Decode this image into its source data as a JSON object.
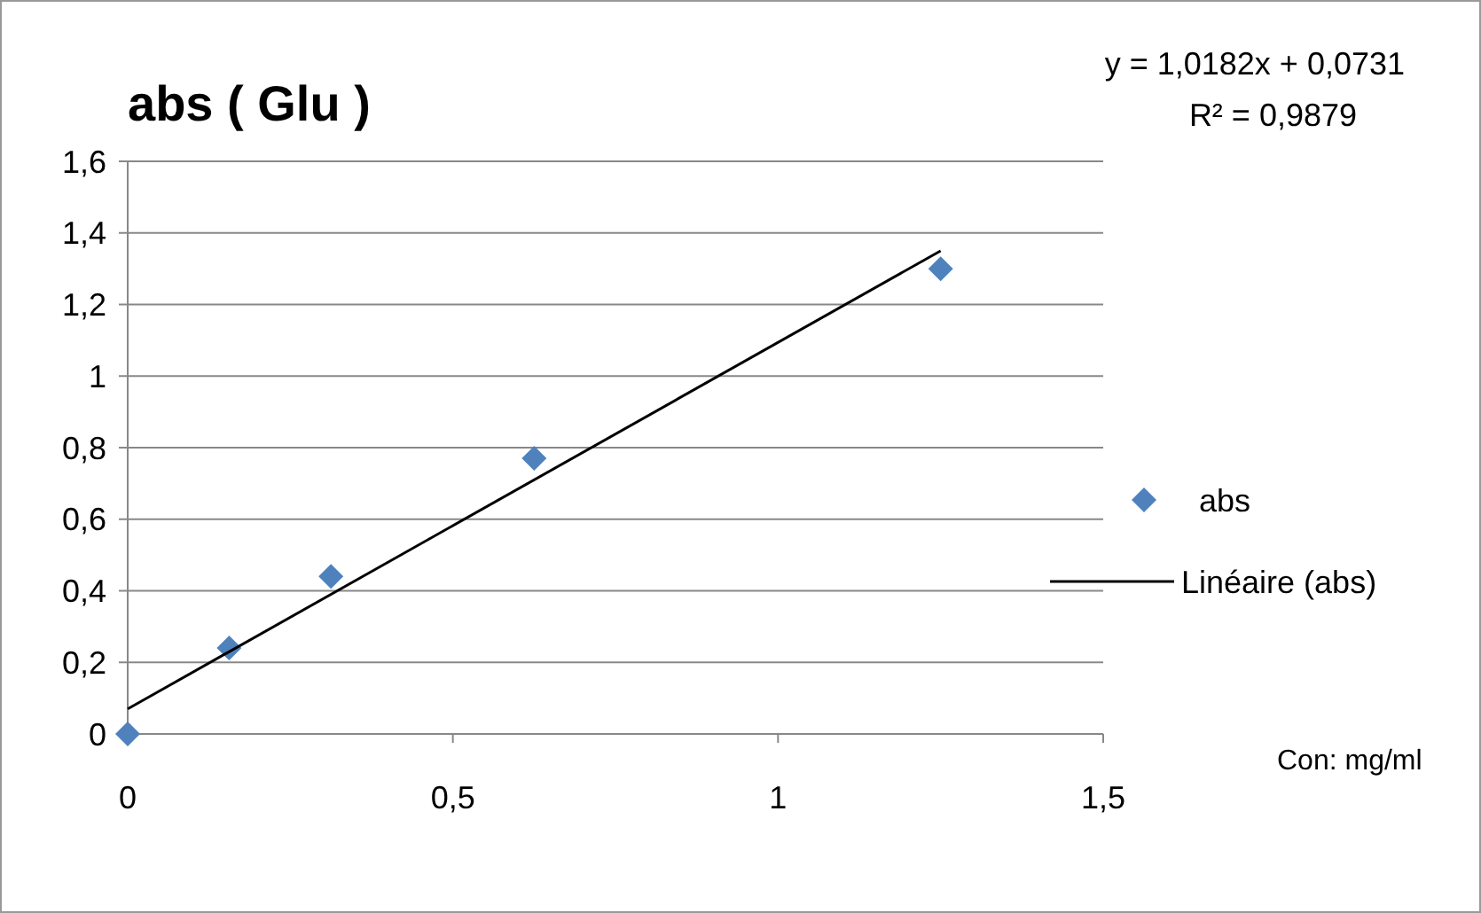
{
  "chart_data": {
    "type": "scatter",
    "title": "abs ( Glu )",
    "annotations": [
      "y = 1,0182x + 0,0731",
      "R² = 0,9879",
      "Con: mg/ml"
    ],
    "x": [
      0,
      0.156,
      0.3125,
      0.625,
      1.25
    ],
    "series": [
      {
        "name": "abs",
        "type": "scatter",
        "color": "#4f81bd",
        "marker": "diamond",
        "values": [
          0,
          0.24,
          0.44,
          0.77,
          1.3
        ]
      },
      {
        "name": "Linéaire (abs)",
        "type": "line",
        "color": "#000000",
        "marker": "none",
        "x": [
          0,
          1.25
        ],
        "values": [
          0.07,
          1.35
        ]
      }
    ],
    "xlim": [
      0,
      1.5
    ],
    "xticks": [
      {
        "value": 0,
        "label": "0"
      },
      {
        "value": 0.5,
        "label": "0,5"
      },
      {
        "value": 1,
        "label": "1"
      },
      {
        "value": 1.5,
        "label": "1,5"
      }
    ],
    "ylim": [
      0,
      1.6
    ],
    "yticks": [
      {
        "value": 0,
        "label": "0"
      },
      {
        "value": 0.2,
        "label": "0,2"
      },
      {
        "value": 0.4,
        "label": "0,4"
      },
      {
        "value": 0.6,
        "label": "0,6"
      },
      {
        "value": 0.8,
        "label": "0,8"
      },
      {
        "value": 1,
        "label": "1"
      },
      {
        "value": 1.2,
        "label": "1,2"
      },
      {
        "value": 1.4,
        "label": "1,4"
      },
      {
        "value": 1.6,
        "label": "1,6"
      }
    ],
    "grid": "y",
    "legend": "right"
  }
}
